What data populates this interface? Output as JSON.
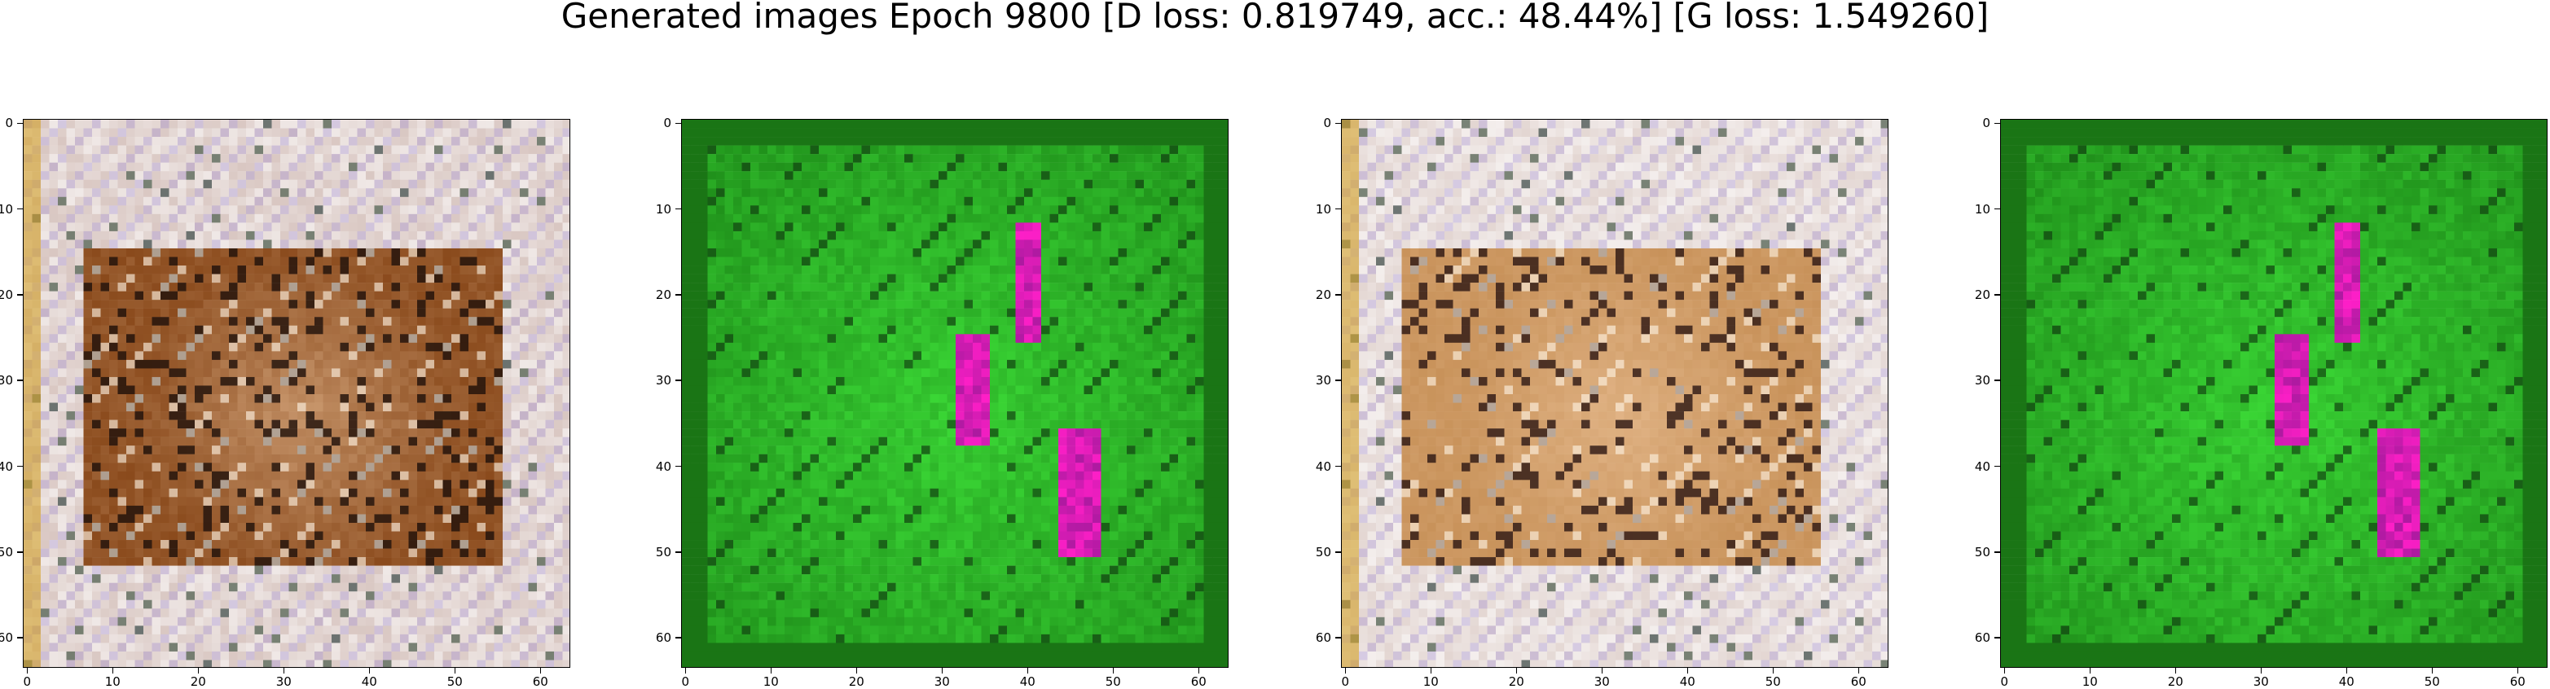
{
  "figure": {
    "title": "Generated images Epoch 9800 [D loss: 0.819749, acc.: 48.44%] [G loss: 1.549260]"
  },
  "axes_ticks": {
    "x": [
      "0",
      "10",
      "20",
      "30",
      "40",
      "50",
      "60"
    ],
    "y": [
      "0",
      "10",
      "20",
      "30",
      "40",
      "50",
      "60"
    ],
    "tick_values": [
      0,
      10,
      20,
      30,
      40,
      50,
      60
    ],
    "extent": [
      -0.5,
      63.5
    ]
  },
  "panels": [
    {
      "name": "generated-image-1",
      "theme": "warm-brown",
      "colors": {
        "bg": "#d9c7c2",
        "center": "#8a4a1c",
        "dark": "#1b0c06"
      }
    },
    {
      "name": "generated-image-2",
      "theme": "green-magenta",
      "colors": {
        "bg": "#1f8f1a",
        "bright": "#3fe33a",
        "accent": "#ff1fc8"
      }
    },
    {
      "name": "generated-image-3",
      "theme": "warm-light",
      "colors": {
        "bg": "#e3d6d2",
        "center": "#c8925a",
        "dark": "#2a1410"
      }
    },
    {
      "name": "generated-image-4",
      "theme": "green-magenta",
      "colors": {
        "bg": "#1f8f1a",
        "bright": "#3fe33a",
        "accent": "#ff1fc8"
      }
    }
  ]
}
